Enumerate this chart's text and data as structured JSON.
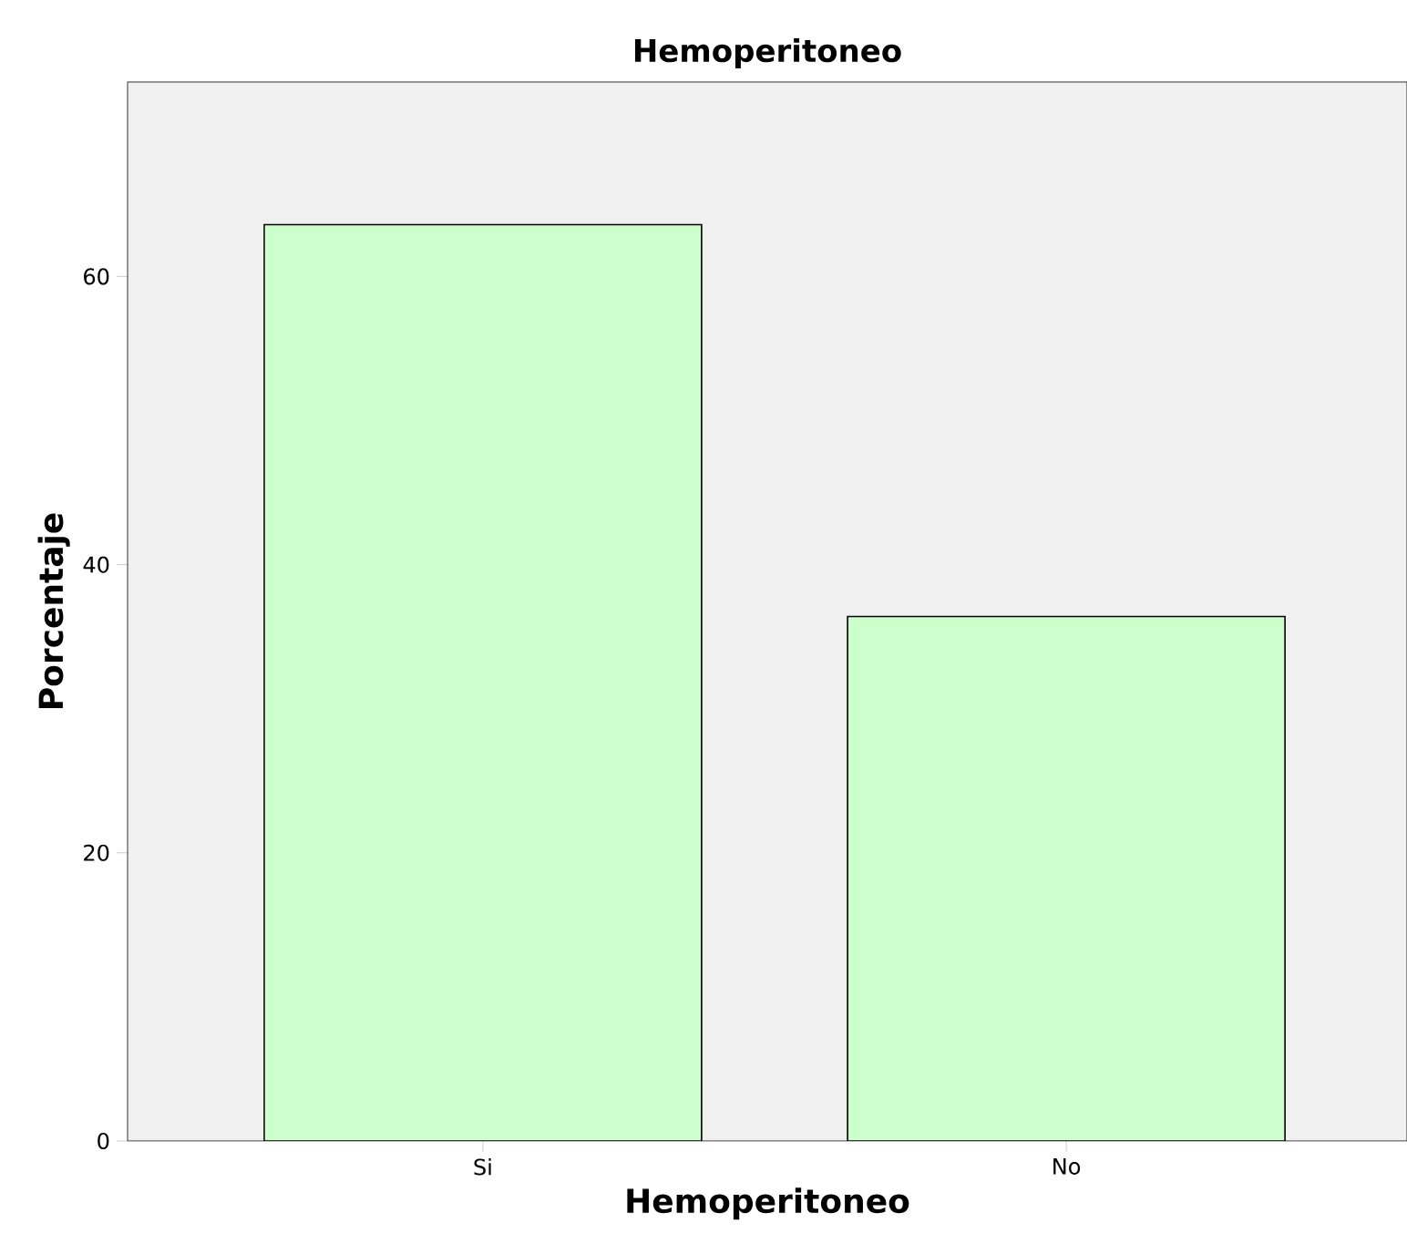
{
  "chart_data": {
    "type": "bar",
    "title": "Hemoperitoneo",
    "xlabel": "Hemoperitoneo",
    "ylabel": "Porcentaje",
    "categories": [
      "Si",
      "No"
    ],
    "values": [
      63.6,
      36.4
    ],
    "color": "#ccffcc",
    "ylim": [
      0,
      73.5
    ],
    "yticks": [
      0,
      20,
      40,
      60
    ],
    "grid": false
  }
}
